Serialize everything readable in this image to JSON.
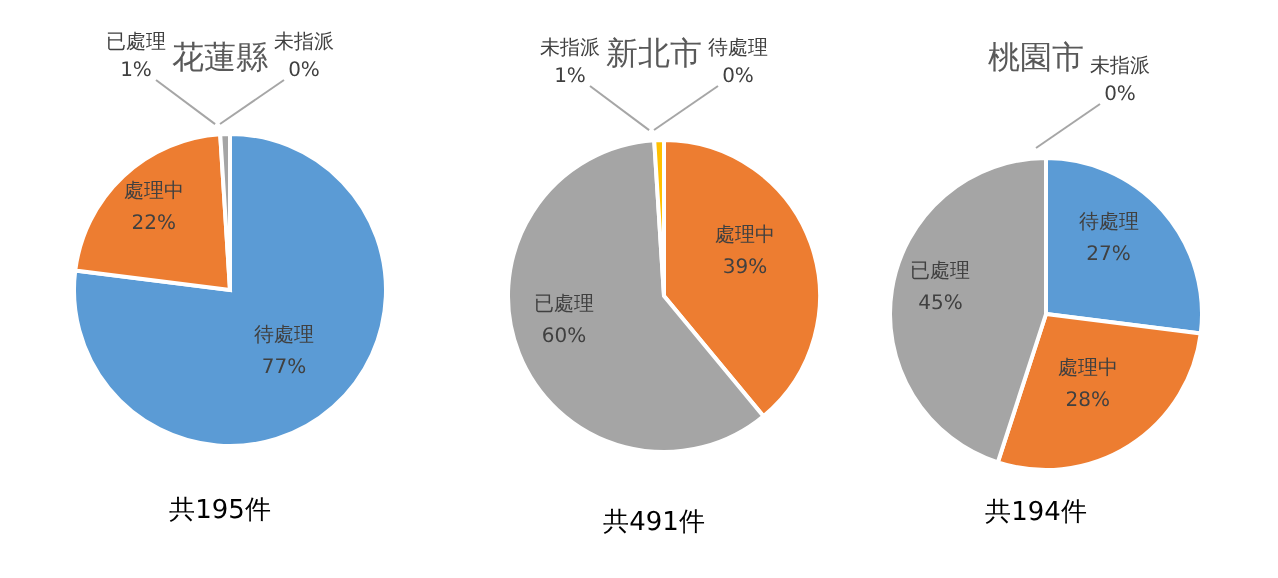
{
  "chart_data": [
    {
      "type": "pie",
      "title": "花蓮縣",
      "categories": [
        "待處理",
        "處理中",
        "已處理",
        "未指派"
      ],
      "values": [
        77,
        22,
        1,
        0
      ],
      "value_labels": [
        "77%",
        "22%",
        "1%",
        "0%"
      ],
      "colors": [
        "#5b9bd5",
        "#ed7d31",
        "#a5a5a5",
        "#ffc000"
      ],
      "annotations": [
        "共195件"
      ]
    },
    {
      "type": "pie",
      "title": "新北市",
      "categories": [
        "待處理",
        "處理中",
        "已處理",
        "未指派"
      ],
      "values": [
        0,
        39,
        60,
        1
      ],
      "value_labels": [
        "0%",
        "39%",
        "60%",
        "1%"
      ],
      "colors": [
        "#5b9bd5",
        "#ed7d31",
        "#a5a5a5",
        "#ffc000"
      ],
      "annotations": [
        "共491件"
      ]
    },
    {
      "type": "pie",
      "title": "桃園市",
      "categories": [
        "待處理",
        "處理中",
        "已處理",
        "未指派"
      ],
      "values": [
        27,
        28,
        45,
        0
      ],
      "value_labels": [
        "27%",
        "28%",
        "45%",
        "0%"
      ],
      "colors": [
        "#5b9bd5",
        "#ed7d31",
        "#a5a5a5",
        "#ffc000"
      ],
      "annotations": [
        "共194件"
      ]
    }
  ]
}
